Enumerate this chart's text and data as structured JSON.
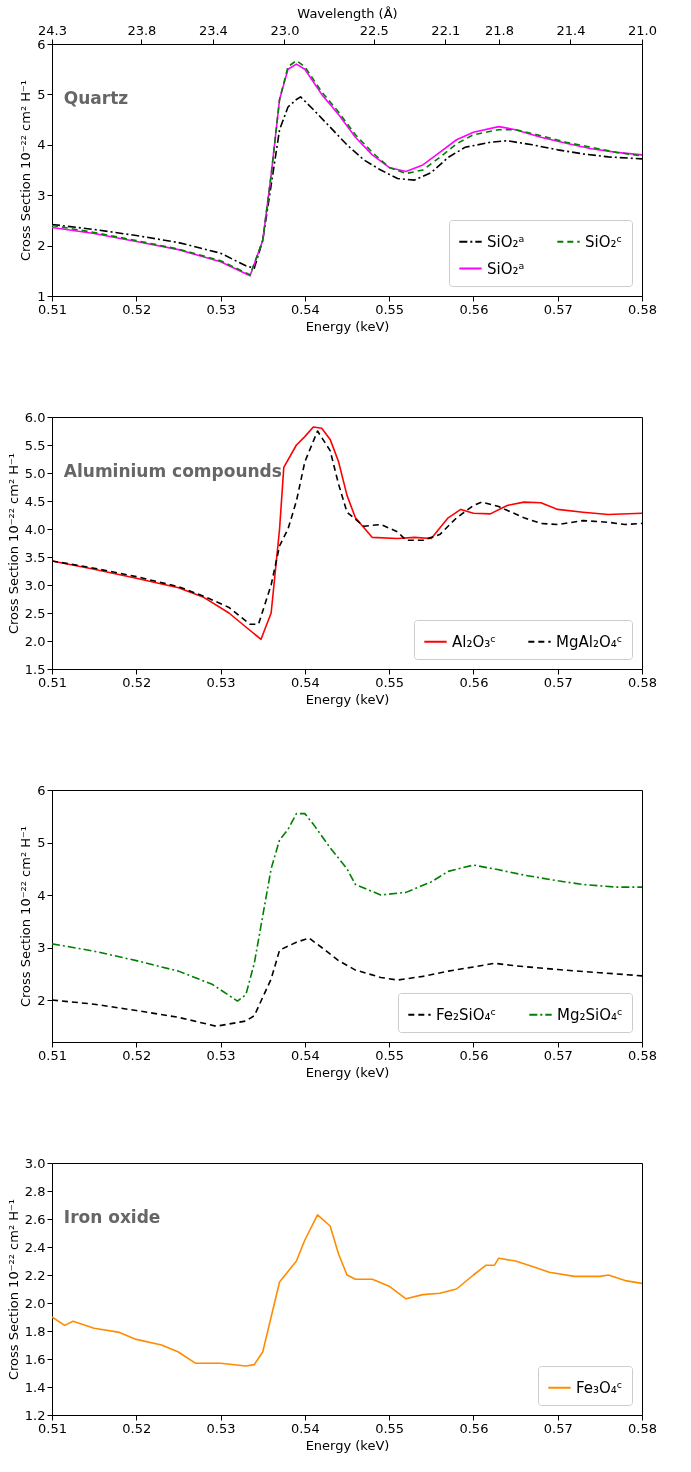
{
  "chart_data": [
    {
      "type": "line",
      "xlabel": "Energy (keV)",
      "ylabel": "Cross Section 10⁻²² cm² H⁻¹",
      "x2label": "Wavelength (Å)",
      "annotations": [
        "Quartz"
      ],
      "xlim": [
        0.51,
        0.58
      ],
      "xticks": [
        0.51,
        0.52,
        0.53,
        0.54,
        0.55,
        0.56,
        0.57,
        0.58
      ],
      "ylim": [
        1,
        6
      ],
      "yticks": [
        1,
        2,
        3,
        4,
        5,
        6
      ],
      "x2lim": [
        24.3,
        21.0
      ],
      "x2ticks": [
        24.3,
        23.8,
        23.4,
        {
          "value": 23,
          "label": "23.0"
        },
        22.5,
        22.1,
        21.8,
        21.4,
        {
          "value": 21,
          "label": "21.0"
        }
      ],
      "legend": "bottom right",
      "grid": false,
      "series": [
        {
          "name": "SiO₂ᵃ",
          "color": "#000000",
          "line_style": "dashdot",
          "x": [
            0.51,
            0.515,
            0.52,
            0.525,
            0.53,
            0.533,
            0.534,
            0.535,
            0.536,
            0.537,
            0.538,
            0.539,
            0.5395,
            0.541,
            0.543,
            0.545,
            0.547,
            0.549,
            0.551,
            0.553,
            0.555,
            0.557,
            0.559,
            0.562,
            0.564,
            0.567,
            0.57,
            0.573,
            0.576,
            0.58
          ],
          "values": [
            2.42,
            2.32,
            2.2,
            2.06,
            1.85,
            1.6,
            1.55,
            2.1,
            3.2,
            4.3,
            4.75,
            4.9,
            4.95,
            4.7,
            4.35,
            4.0,
            3.7,
            3.5,
            3.33,
            3.3,
            3.45,
            3.75,
            3.95,
            4.05,
            4.08,
            4.0,
            3.9,
            3.82,
            3.76,
            3.72
          ]
        },
        {
          "name": "SiO₂ᵃ",
          "color": "#ff00ff",
          "line_style": "solid",
          "x": [
            0.51,
            0.515,
            0.52,
            0.525,
            0.53,
            0.5335,
            0.535,
            0.536,
            0.537,
            0.538,
            0.539,
            0.54,
            0.542,
            0.544,
            0.546,
            0.548,
            0.55,
            0.552,
            0.554,
            0.556,
            0.558,
            0.56,
            0.563,
            0.565,
            0.568,
            0.571,
            0.574,
            0.577,
            0.58
          ],
          "values": [
            2.36,
            2.24,
            2.08,
            1.92,
            1.68,
            1.4,
            2.1,
            3.4,
            4.9,
            5.5,
            5.6,
            5.5,
            5.0,
            4.6,
            4.15,
            3.8,
            3.55,
            3.47,
            3.6,
            3.85,
            4.1,
            4.25,
            4.36,
            4.3,
            4.15,
            4.03,
            3.92,
            3.85,
            3.8
          ]
        },
        {
          "name": "SiO₂ᶜ",
          "color": "#008000",
          "line_style": "dashed",
          "x": [
            0.51,
            0.515,
            0.52,
            0.525,
            0.53,
            0.5335,
            0.535,
            0.536,
            0.537,
            0.538,
            0.539,
            0.54,
            0.542,
            0.544,
            0.546,
            0.548,
            0.55,
            0.552,
            0.554,
            0.556,
            0.558,
            0.56,
            0.563,
            0.565,
            0.568,
            0.571,
            0.574,
            0.577,
            0.58
          ],
          "values": [
            2.4,
            2.26,
            2.1,
            1.93,
            1.7,
            1.42,
            2.1,
            3.4,
            4.9,
            5.55,
            5.67,
            5.55,
            5.05,
            4.65,
            4.2,
            3.85,
            3.55,
            3.43,
            3.5,
            3.75,
            4.02,
            4.2,
            4.3,
            4.3,
            4.18,
            4.05,
            3.95,
            3.85,
            3.78
          ]
        }
      ]
    },
    {
      "type": "line",
      "xlabel": "Energy (keV)",
      "ylabel": "Cross Section 10⁻²² cm² H⁻¹",
      "annotations": [
        "Aluminium compounds"
      ],
      "xlim": [
        0.51,
        0.58
      ],
      "xticks": [
        0.51,
        0.52,
        0.53,
        0.54,
        0.55,
        0.56,
        0.57,
        0.58
      ],
      "ylim": [
        1.5,
        6.0
      ],
      "yticks": [
        {
          "value": 1.5,
          "label": "1.5"
        },
        {
          "value": 2,
          "label": "2.0"
        },
        {
          "value": 2.5,
          "label": "2.5"
        },
        {
          "value": 3,
          "label": "3.0"
        },
        {
          "value": 3.5,
          "label": "3.5"
        },
        {
          "value": 4,
          "label": "4.0"
        },
        {
          "value": 4.5,
          "label": "4.5"
        },
        {
          "value": 5,
          "label": "5.0"
        },
        {
          "value": 5.5,
          "label": "5.5"
        },
        {
          "value": 6,
          "label": "6.0"
        }
      ],
      "legend": "bottom right",
      "grid": false,
      "series": [
        {
          "name": "Al₂O₃ᶜ",
          "color": "#ff0000",
          "line_style": "solid",
          "x": [
            0.51,
            0.515,
            0.52,
            0.525,
            0.528,
            0.531,
            0.533,
            0.5348,
            0.536,
            0.537,
            0.5375,
            0.539,
            0.54,
            0.541,
            0.542,
            0.543,
            0.544,
            0.545,
            0.546,
            0.548,
            0.551,
            0.553,
            0.555,
            0.557,
            0.5585,
            0.56,
            0.562,
            0.564,
            0.566,
            0.568,
            0.57,
            0.573,
            0.576,
            0.58
          ],
          "values": [
            3.43,
            3.28,
            3.12,
            2.95,
            2.78,
            2.5,
            2.25,
            2.03,
            2.5,
            4.0,
            5.1,
            5.5,
            5.65,
            5.82,
            5.8,
            5.6,
            5.2,
            4.6,
            4.2,
            3.85,
            3.83,
            3.85,
            3.83,
            4.2,
            4.35,
            4.28,
            4.27,
            4.42,
            4.48,
            4.47,
            4.35,
            4.3,
            4.26,
            4.28
          ]
        },
        {
          "name": "MgAl₂O₄ᶜ",
          "color": "#000000",
          "line_style": "dashed",
          "x": [
            0.51,
            0.515,
            0.52,
            0.525,
            0.528,
            0.531,
            0.5335,
            0.5345,
            0.536,
            0.537,
            0.538,
            0.539,
            0.54,
            0.5415,
            0.543,
            0.544,
            0.545,
            0.547,
            0.549,
            0.551,
            0.552,
            0.554,
            0.556,
            0.558,
            0.56,
            0.561,
            0.563,
            0.566,
            0.568,
            0.57,
            0.573,
            0.576,
            0.578,
            0.58
          ],
          "values": [
            3.43,
            3.3,
            3.15,
            2.97,
            2.8,
            2.6,
            2.3,
            2.3,
            3.0,
            3.7,
            4.0,
            4.5,
            5.2,
            5.75,
            5.4,
            4.8,
            4.3,
            4.05,
            4.08,
            3.95,
            3.8,
            3.8,
            3.9,
            4.2,
            4.42,
            4.48,
            4.4,
            4.2,
            4.1,
            4.08,
            4.15,
            4.12,
            4.08,
            4.1
          ]
        }
      ]
    },
    {
      "type": "line",
      "xlabel": "Energy (keV)",
      "ylabel": "Cross Section 10⁻²² cm² H⁻¹",
      "xlim": [
        0.51,
        0.58
      ],
      "xticks": [
        0.51,
        0.52,
        0.53,
        0.54,
        0.55,
        0.56,
        0.57,
        0.58
      ],
      "ylim": [
        1.2,
        6
      ],
      "yticks": [
        2,
        3,
        4,
        5,
        6
      ],
      "legend": "bottom right",
      "grid": false,
      "series": [
        {
          "name": "Fe₂SiO₄ᶜ",
          "color": "#000000",
          "line_style": "dashed",
          "x": [
            0.51,
            0.515,
            0.52,
            0.525,
            0.5295,
            0.533,
            0.534,
            0.536,
            0.537,
            0.539,
            0.5405,
            0.542,
            0.544,
            0.546,
            0.549,
            0.551,
            0.554,
            0.557,
            0.56,
            0.5625,
            0.565,
            0.57,
            0.575,
            0.58
          ],
          "values": [
            2.0,
            1.92,
            1.8,
            1.67,
            1.5,
            1.6,
            1.7,
            2.4,
            2.95,
            3.1,
            3.18,
            3.0,
            2.75,
            2.57,
            2.43,
            2.38,
            2.45,
            2.55,
            2.63,
            2.7,
            2.65,
            2.58,
            2.52,
            2.46
          ]
        },
        {
          "name": "Mg₂SiO₄ᶜ",
          "color": "#008000",
          "line_style": "dashdot",
          "x": [
            0.51,
            0.515,
            0.52,
            0.525,
            0.529,
            0.532,
            0.533,
            0.534,
            0.535,
            0.536,
            0.537,
            0.538,
            0.539,
            0.54,
            0.541,
            0.543,
            0.545,
            0.546,
            0.549,
            0.552,
            0.555,
            0.557,
            0.56,
            0.563,
            0.566,
            0.57,
            0.573,
            0.577,
            0.58
          ],
          "values": [
            3.07,
            2.93,
            2.75,
            2.55,
            2.3,
            1.98,
            2.1,
            2.7,
            3.6,
            4.5,
            5.05,
            5.25,
            5.55,
            5.55,
            5.35,
            4.9,
            4.5,
            4.2,
            4.0,
            4.05,
            4.25,
            4.45,
            4.57,
            4.48,
            4.38,
            4.27,
            4.2,
            4.15,
            4.15
          ]
        }
      ]
    },
    {
      "type": "line",
      "xlabel": "Energy (keV)",
      "ylabel": "Cross Section 10⁻²² cm² H⁻¹",
      "annotations": [
        "Iron oxide"
      ],
      "xlim": [
        0.51,
        0.58
      ],
      "xticks": [
        0.51,
        0.52,
        0.53,
        0.54,
        0.55,
        0.56,
        0.57,
        0.58
      ],
      "ylim": [
        1.2,
        3.0
      ],
      "yticks": [
        1.2,
        1.4,
        1.6,
        1.8,
        {
          "value": 2,
          "label": "2.0"
        },
        2.2,
        2.4,
        2.6,
        2.8,
        {
          "value": 3,
          "label": "3.0"
        }
      ],
      "legend": "bottom right",
      "grid": false,
      "series": [
        {
          "name": "Fe₃O₄ᶜ",
          "color": "#ff8c00",
          "line_style": "solid",
          "x": [
            0.51,
            0.5115,
            0.5125,
            0.515,
            0.518,
            0.52,
            0.523,
            0.525,
            0.527,
            0.53,
            0.533,
            0.534,
            0.535,
            0.536,
            0.537,
            0.539,
            0.54,
            0.5415,
            0.543,
            0.544,
            0.545,
            0.546,
            0.548,
            0.55,
            0.552,
            0.554,
            0.556,
            0.558,
            0.56,
            0.5615,
            0.5625,
            0.563,
            0.565,
            0.567,
            0.569,
            0.572,
            0.575,
            0.576,
            0.578,
            0.58
          ],
          "values": [
            1.9,
            1.84,
            1.87,
            1.82,
            1.79,
            1.74,
            1.7,
            1.65,
            1.57,
            1.57,
            1.55,
            1.56,
            1.65,
            1.9,
            2.15,
            2.3,
            2.45,
            2.63,
            2.55,
            2.35,
            2.2,
            2.17,
            2.17,
            2.12,
            2.03,
            2.06,
            2.07,
            2.1,
            2.2,
            2.27,
            2.27,
            2.32,
            2.3,
            2.26,
            2.22,
            2.19,
            2.19,
            2.2,
            2.16,
            2.14
          ]
        }
      ]
    }
  ]
}
